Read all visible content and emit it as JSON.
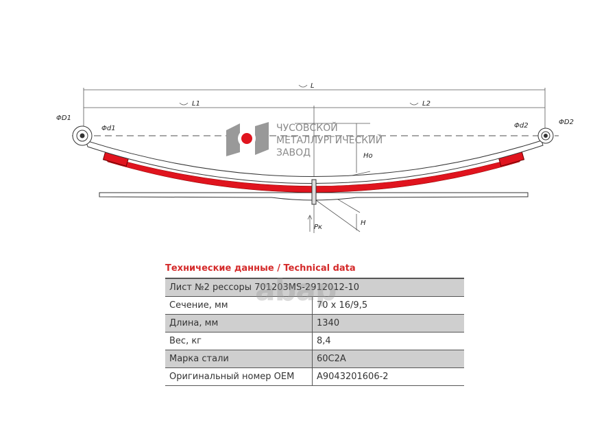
{
  "drawing": {
    "labels": {
      "L": "L",
      "L1": "L1",
      "L2": "L2",
      "D1": "ΦD1",
      "d1": "Φd1",
      "d2": "Φd2",
      "D2": "ΦD2",
      "Ho": "Ho",
      "H": "H",
      "Pk": "Pк"
    },
    "accent_color": "#e0141e",
    "logo": {
      "line1": "ЧУСОВСКОЙ",
      "line2": "МЕТАЛЛУРГИЧЕСКИЙ",
      "line3": "ЗАВОД"
    }
  },
  "table": {
    "title": "Технические данные / Technical data",
    "header": "Лист №2 рессоры 701203MS-2912012-10",
    "rows": [
      {
        "label": "Сечение, мм",
        "value": "70 x 16/9,5"
      },
      {
        "label": "Длина, мм",
        "value": "1340"
      },
      {
        "label": "Вес, кг",
        "value": "8,4"
      },
      {
        "label": "Марка стали",
        "value": "60С2А"
      },
      {
        "label": "Оригинальный номер OEM",
        "value": "A9043201606-2"
      }
    ]
  },
  "watermark": "abap"
}
